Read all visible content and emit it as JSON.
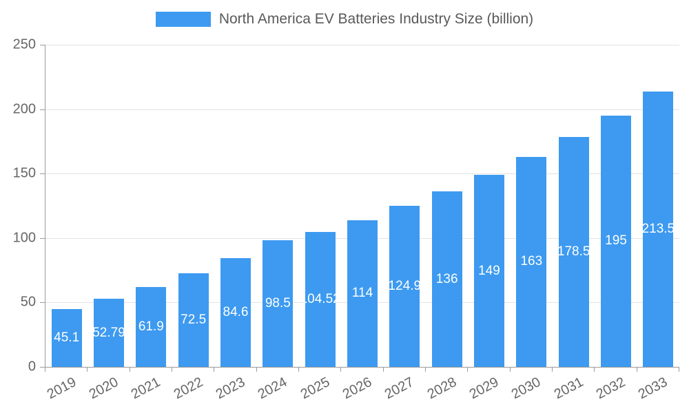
{
  "legend": {
    "label": "North America EV Batteries Industry Size (billion)"
  },
  "chart_data": {
    "type": "bar",
    "title": "North America EV Batteries Industry Size (billion)",
    "categories": [
      "2019",
      "2020",
      "2021",
      "2022",
      "2023",
      "2024",
      "2025",
      "2026",
      "2027",
      "2028",
      "2029",
      "2030",
      "2031",
      "2032",
      "2033"
    ],
    "values": [
      45.1,
      52.79,
      61.9,
      72.5,
      84.6,
      98.5,
      104.52,
      114,
      124.9,
      136,
      149,
      163,
      178.5,
      195,
      213.5
    ],
    "xlabel": "",
    "ylabel": "",
    "ylim": [
      0,
      250
    ],
    "yticks": [
      0,
      50,
      100,
      150,
      200,
      250
    ],
    "grid": true,
    "legend_position": "top",
    "bar_color": "#3d9af0",
    "value_label_color": "#ffffff",
    "axis_color": "#9a9a9a",
    "tick_label_color": "#666666"
  }
}
